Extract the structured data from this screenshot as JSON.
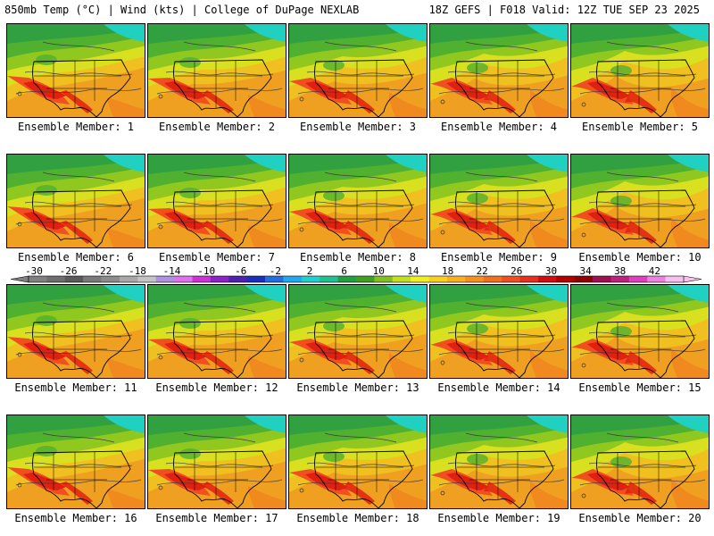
{
  "header": {
    "left": "850mb Temp (°C) | Wind (kts) | College of DuPage NEXLAB",
    "right": "18Z GEFS | F018 Valid: 12Z TUE SEP 23 2025"
  },
  "caption_prefix": "Ensemble Member: ",
  "members": [
    "1",
    "2",
    "3",
    "4",
    "5",
    "6",
    "7",
    "8",
    "9",
    "10",
    "11",
    "12",
    "13",
    "14",
    "15",
    "16",
    "17",
    "18",
    "19",
    "20"
  ],
  "colorbar": {
    "labels": [
      "-30",
      "-26",
      "-22",
      "-18",
      "-14",
      "-10",
      "-6",
      "-2",
      "2",
      "6",
      "10",
      "14",
      "18",
      "22",
      "26",
      "30",
      "34",
      "38",
      "42"
    ],
    "colors": [
      "#808080",
      "#6e6e6e",
      "#5a5a5a",
      "#7a7a7a",
      "#8c8c8c",
      "#a8a8a8",
      "#c4c4c4",
      "#b090e0",
      "#e070f0",
      "#d030d8",
      "#9020c8",
      "#5020b0",
      "#1830c0",
      "#2070e0",
      "#20a8f0",
      "#20d0d0",
      "#20c090",
      "#20a040",
      "#40a020",
      "#80c020",
      "#c0e020",
      "#f0f020",
      "#f8d020",
      "#f8b020",
      "#f89020",
      "#f07020",
      "#f05020",
      "#e83020",
      "#d01010",
      "#b00000",
      "#900000",
      "#a01050",
      "#c02080",
      "#e040c0",
      "#f080e0",
      "#f8c0f0"
    ]
  },
  "map_colors": {
    "cyan": "#20d0c0",
    "green_dark": "#30a040",
    "green": "#50b030",
    "green_light": "#90c820",
    "yellow": "#d8e020",
    "gold": "#f0c020",
    "orange": "#f0a020",
    "orange_deep": "#f08020",
    "red_orange": "#f05020",
    "red": "#e02010"
  }
}
